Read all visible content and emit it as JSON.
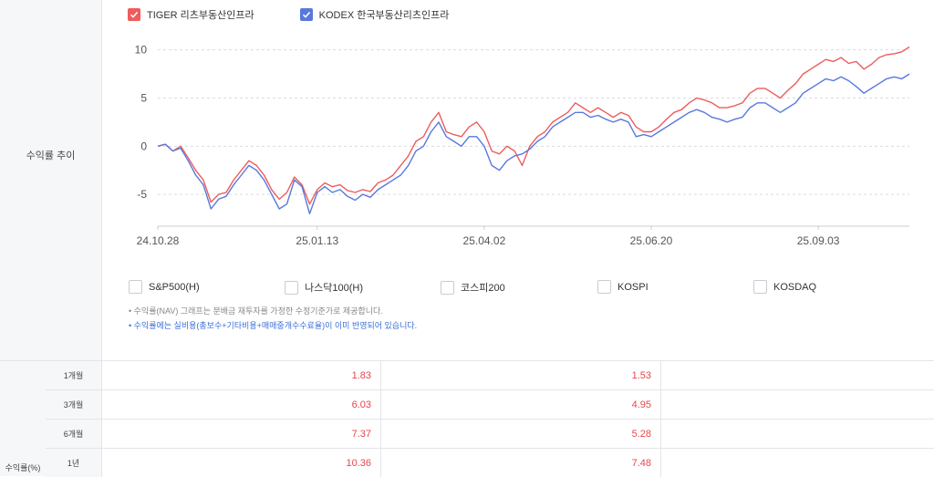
{
  "row_label_trend": "수익률 추이",
  "legend": [
    {
      "label": "TIGER 리츠부동산인프라",
      "color": "#ee5c5c"
    },
    {
      "label": "KODEX 한국부동산리츠인프라",
      "color": "#5878dd"
    }
  ],
  "compare_options": [
    "S&P500(H)",
    "나스닥100(H)",
    "코스피200",
    "KOSPI",
    "KOSDAQ"
  ],
  "notes": [
    "• 수익률(NAV) 그래프는 분배금 재투자를 가정한 수정기준가로 제공합니다.",
    "• 수익률에는 실비용(총보수+기타비용+매매중개수수료율)이 이미 반영되어 있습니다."
  ],
  "returns_table": {
    "group_label": "수익률(%)",
    "rows": [
      {
        "period": "1개월",
        "values": [
          "1.83",
          "1.53"
        ]
      },
      {
        "period": "3개월",
        "values": [
          "6.03",
          "4.95"
        ]
      },
      {
        "period": "6개월",
        "values": [
          "7.37",
          "5.28"
        ]
      },
      {
        "period": "1년",
        "values": [
          "10.36",
          "7.48"
        ]
      }
    ]
  },
  "chart_data": {
    "type": "line",
    "x_tick_labels": [
      "24.10.28",
      "25.01.13",
      "25.04.02",
      "25.06.20",
      "25.09.03"
    ],
    "y_ticks": [
      10,
      5,
      0,
      -5
    ],
    "ylim": [
      -8.3,
      11.2
    ],
    "x_points": 100,
    "x_tick_index": [
      0,
      21,
      43,
      65,
      87
    ],
    "series": [
      {
        "name": "TIGER 리츠부동산인프라",
        "color": "#ee5c5c",
        "values": [
          0,
          0.2,
          -0.5,
          0,
          -1.2,
          -2.5,
          -3.5,
          -5.8,
          -5.0,
          -4.8,
          -3.5,
          -2.5,
          -1.5,
          -2.0,
          -3.0,
          -4.5,
          -5.5,
          -4.8,
          -3.2,
          -4.0,
          -6.0,
          -4.5,
          -3.8,
          -4.2,
          -4.0,
          -4.6,
          -4.8,
          -4.5,
          -4.7,
          -3.8,
          -3.5,
          -3.0,
          -2.0,
          -1.0,
          0.5,
          1.0,
          2.5,
          3.5,
          1.5,
          1.2,
          1.0,
          2.0,
          2.5,
          1.5,
          -0.5,
          -0.8,
          0.0,
          -0.5,
          -2.0,
          0.0,
          1.0,
          1.5,
          2.5,
          3.0,
          3.5,
          4.5,
          4.0,
          3.5,
          4.0,
          3.5,
          3.0,
          3.5,
          3.2,
          2.0,
          1.5,
          1.5,
          2.0,
          2.8,
          3.5,
          3.8,
          4.5,
          5.0,
          4.8,
          4.5,
          4.0,
          4.0,
          4.2,
          4.5,
          5.5,
          6.0,
          6.0,
          5.5,
          5.0,
          5.8,
          6.5,
          7.5,
          8.0,
          8.5,
          9.0,
          8.8,
          9.2,
          8.6,
          8.8,
          8.0,
          8.5,
          9.2,
          9.5,
          9.6,
          9.8,
          10.3
        ]
      },
      {
        "name": "KODEX 한국부동산리츠인프라",
        "color": "#5878dd",
        "values": [
          0,
          0.2,
          -0.5,
          -0.2,
          -1.5,
          -3.0,
          -4.0,
          -6.5,
          -5.5,
          -5.2,
          -4.0,
          -3.0,
          -2.0,
          -2.5,
          -3.5,
          -5.0,
          -6.5,
          -6.0,
          -3.5,
          -4.2,
          -7.0,
          -4.8,
          -4.2,
          -4.8,
          -4.5,
          -5.2,
          -5.6,
          -5.0,
          -5.3,
          -4.5,
          -4.0,
          -3.5,
          -3.0,
          -2.0,
          -0.5,
          0.0,
          1.5,
          2.5,
          1.0,
          0.5,
          0.0,
          1.0,
          1.0,
          0.0,
          -2.0,
          -2.5,
          -1.5,
          -1.0,
          -0.8,
          -0.3,
          0.5,
          1.0,
          2.0,
          2.5,
          3.0,
          3.5,
          3.5,
          3.0,
          3.2,
          2.8,
          2.5,
          2.8,
          2.5,
          1.0,
          1.2,
          1.0,
          1.5,
          2.0,
          2.5,
          3.0,
          3.5,
          3.8,
          3.5,
          3.0,
          2.8,
          2.5,
          2.8,
          3.0,
          4.0,
          4.5,
          4.5,
          4.0,
          3.5,
          4.0,
          4.5,
          5.5,
          6.0,
          6.5,
          7.0,
          6.8,
          7.2,
          6.8,
          6.2,
          5.5,
          6.0,
          6.5,
          7.0,
          7.2,
          7.0,
          7.5
        ]
      }
    ]
  }
}
